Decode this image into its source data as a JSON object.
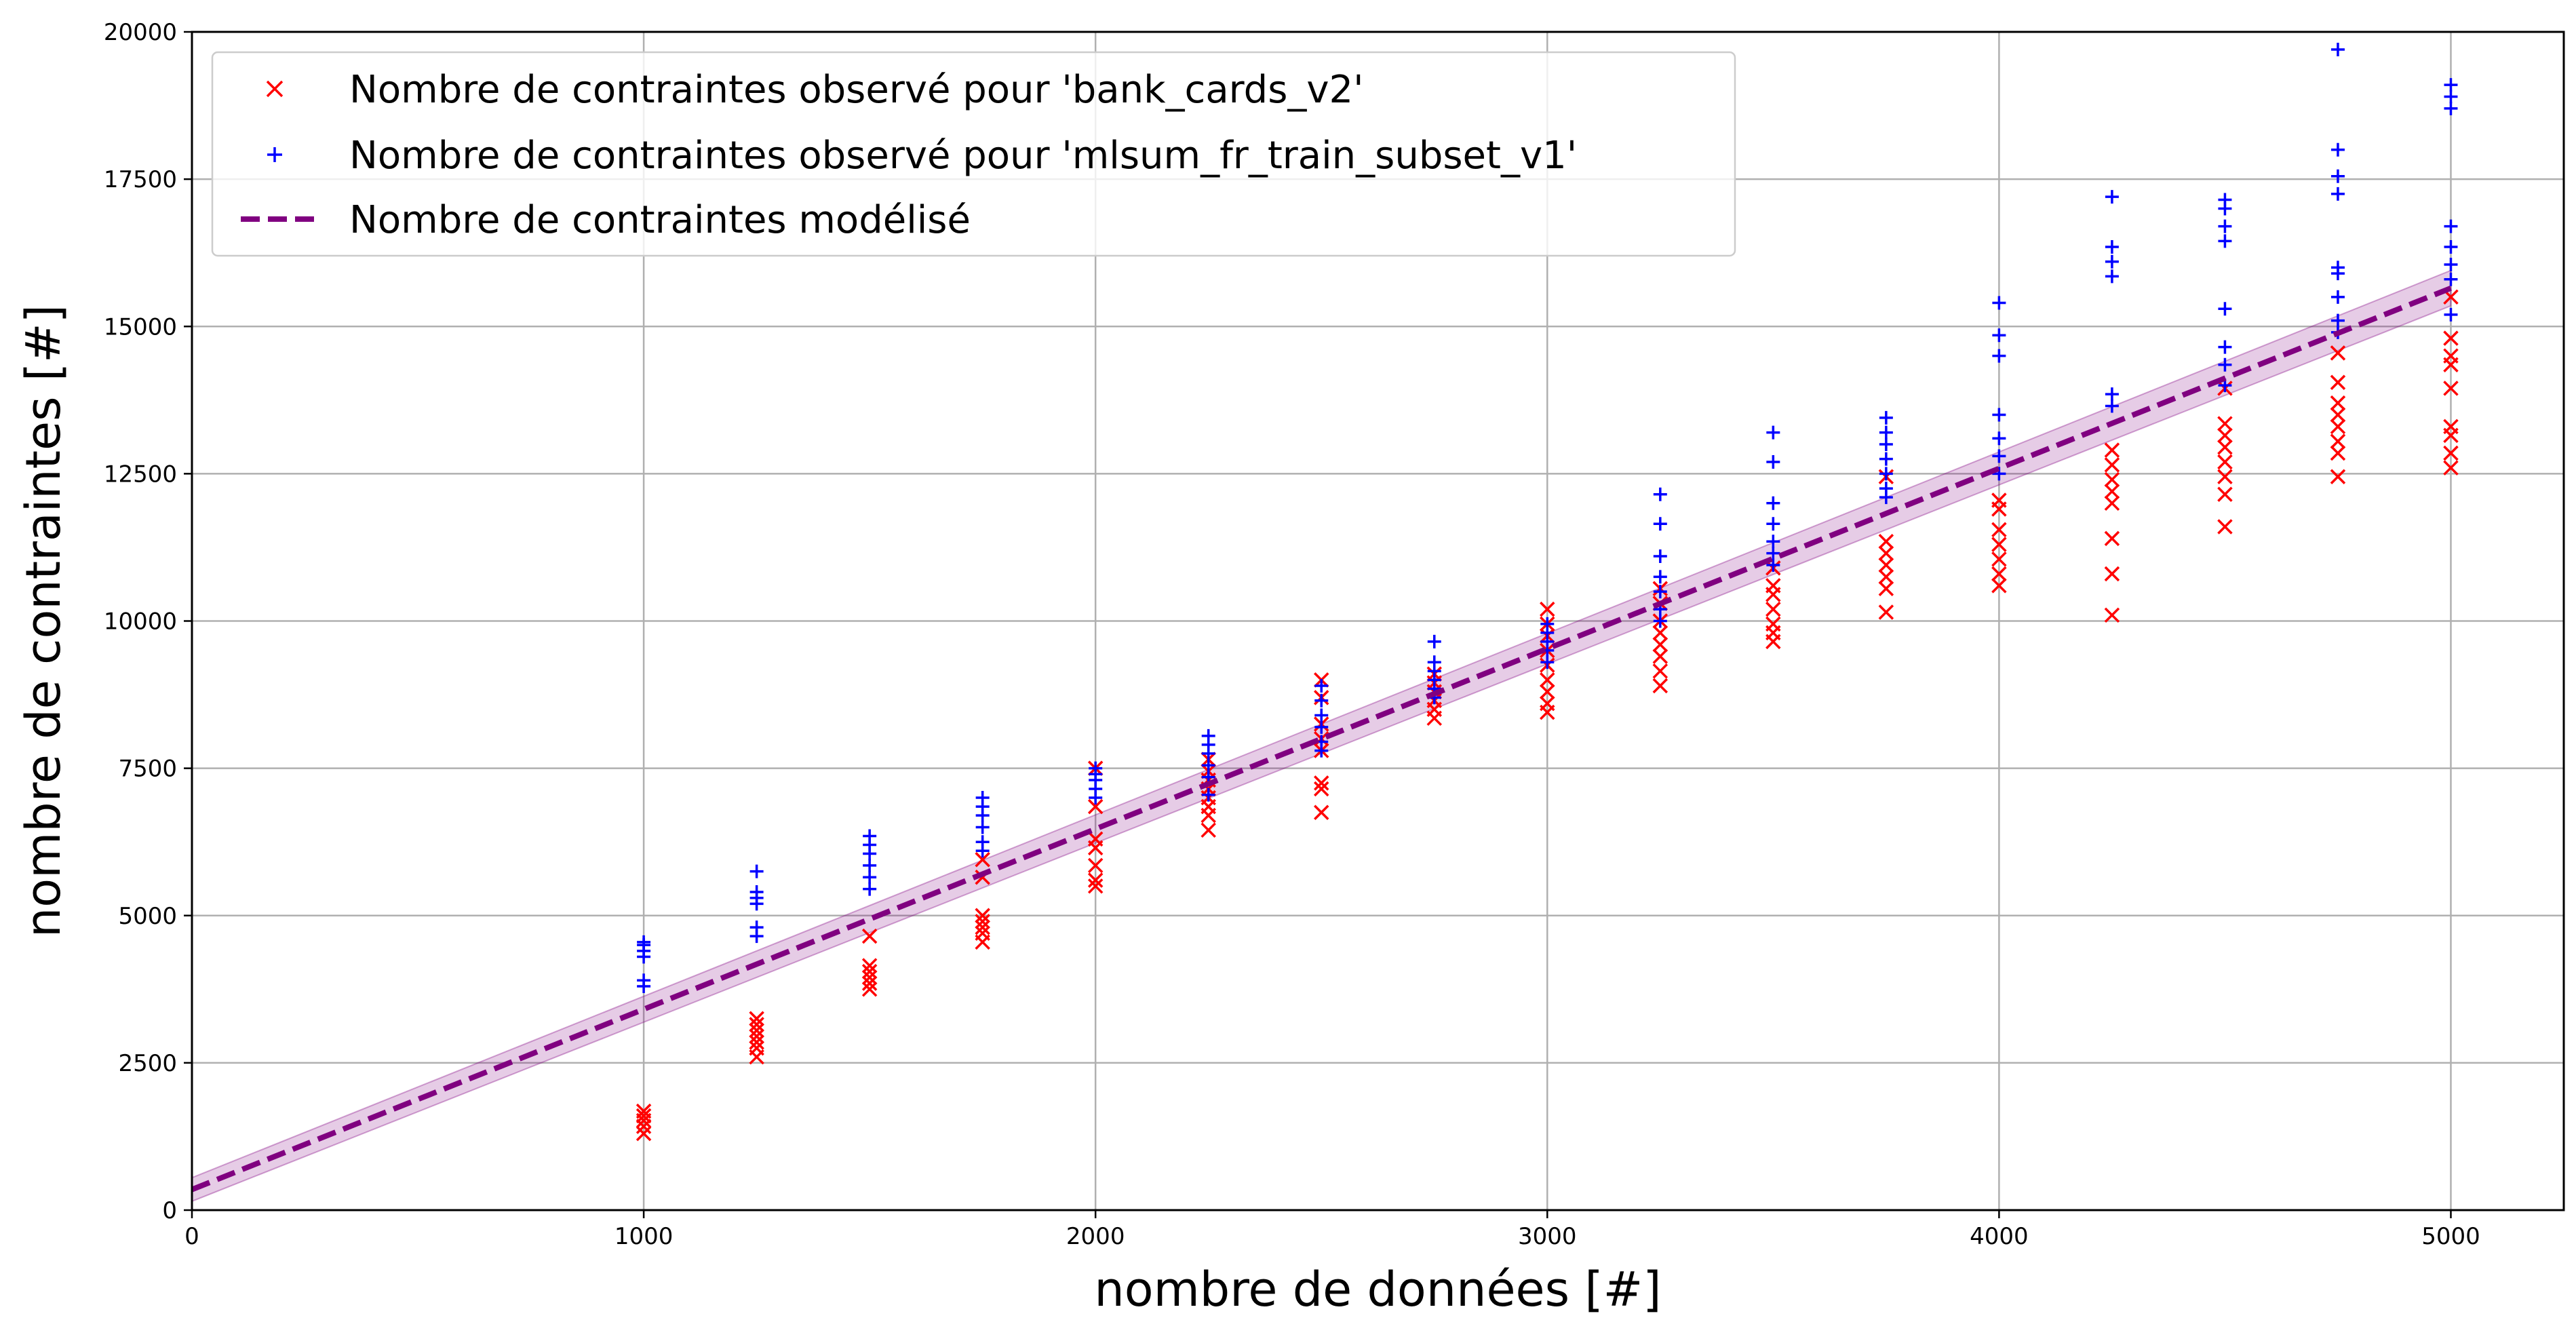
{
  "chart_data": {
    "type": "scatter",
    "title": "",
    "xlabel": "nombre de données [#]",
    "ylabel": "nombre de contraintes [#]",
    "xlim": [
      0,
      5250
    ],
    "ylim": [
      0,
      20000
    ],
    "xticks": [
      0,
      1000,
      2000,
      3000,
      4000,
      5000
    ],
    "yticks": [
      0,
      2500,
      5000,
      7500,
      10000,
      12500,
      15000,
      17500,
      20000
    ],
    "grid": true,
    "legend_position": "top-left",
    "series": [
      {
        "name": "Nombre de contraintes observé pour 'bank_cards_v2'",
        "marker": "x",
        "color": "#ff0000",
        "points": [
          [
            1000,
            1300
          ],
          [
            1000,
            1420
          ],
          [
            1000,
            1520
          ],
          [
            1000,
            1600
          ],
          [
            1000,
            1680
          ],
          [
            1250,
            2600
          ],
          [
            1250,
            2750
          ],
          [
            1250,
            2850
          ],
          [
            1250,
            2950
          ],
          [
            1250,
            3050
          ],
          [
            1250,
            3150
          ],
          [
            1250,
            3250
          ],
          [
            1500,
            3750
          ],
          [
            1500,
            3850
          ],
          [
            1500,
            3950
          ],
          [
            1500,
            4050
          ],
          [
            1500,
            4150
          ],
          [
            1500,
            4650
          ],
          [
            1750,
            4550
          ],
          [
            1750,
            4700
          ],
          [
            1750,
            4800
          ],
          [
            1750,
            4900
          ],
          [
            1750,
            5000
          ],
          [
            1750,
            5650
          ],
          [
            1750,
            5950
          ],
          [
            2000,
            5500
          ],
          [
            2000,
            5600
          ],
          [
            2000,
            5850
          ],
          [
            2000,
            6150
          ],
          [
            2000,
            6300
          ],
          [
            2000,
            6850
          ],
          [
            2000,
            7500
          ],
          [
            2250,
            6450
          ],
          [
            2250,
            6700
          ],
          [
            2250,
            6850
          ],
          [
            2250,
            7000
          ],
          [
            2250,
            7150
          ],
          [
            2250,
            7300
          ],
          [
            2250,
            7450
          ],
          [
            2250,
            7650
          ],
          [
            2500,
            6750
          ],
          [
            2500,
            7150
          ],
          [
            2500,
            7250
          ],
          [
            2500,
            7800
          ],
          [
            2500,
            8000
          ],
          [
            2500,
            8250
          ],
          [
            2500,
            8700
          ],
          [
            2500,
            9000
          ],
          [
            2750,
            8350
          ],
          [
            2750,
            8500
          ],
          [
            2750,
            8650
          ],
          [
            2750,
            8800
          ],
          [
            2750,
            8950
          ],
          [
            2750,
            9100
          ],
          [
            3000,
            8450
          ],
          [
            3000,
            8600
          ],
          [
            3000,
            8800
          ],
          [
            3000,
            9000
          ],
          [
            3000,
            9250
          ],
          [
            3000,
            9500
          ],
          [
            3000,
            9750
          ],
          [
            3000,
            9950
          ],
          [
            3000,
            10200
          ],
          [
            3250,
            8900
          ],
          [
            3250,
            9150
          ],
          [
            3250,
            9400
          ],
          [
            3250,
            9600
          ],
          [
            3250,
            9800
          ],
          [
            3250,
            10000
          ],
          [
            3250,
            10300
          ],
          [
            3250,
            10550
          ],
          [
            3500,
            9650
          ],
          [
            3500,
            9800
          ],
          [
            3500,
            9950
          ],
          [
            3500,
            10200
          ],
          [
            3500,
            10450
          ],
          [
            3500,
            10600
          ],
          [
            3500,
            10900
          ],
          [
            3750,
            10150
          ],
          [
            3750,
            10550
          ],
          [
            3750,
            10750
          ],
          [
            3750,
            10950
          ],
          [
            3750,
            11150
          ],
          [
            3750,
            11350
          ],
          [
            3750,
            12450
          ],
          [
            4000,
            10600
          ],
          [
            4000,
            10800
          ],
          [
            4000,
            11050
          ],
          [
            4000,
            11300
          ],
          [
            4000,
            11550
          ],
          [
            4000,
            11900
          ],
          [
            4000,
            12050
          ],
          [
            4250,
            10100
          ],
          [
            4250,
            10800
          ],
          [
            4250,
            11400
          ],
          [
            4250,
            12000
          ],
          [
            4250,
            12200
          ],
          [
            4250,
            12400
          ],
          [
            4250,
            12650
          ],
          [
            4250,
            12900
          ],
          [
            4500,
            11600
          ],
          [
            4500,
            12150
          ],
          [
            4500,
            12450
          ],
          [
            4500,
            12700
          ],
          [
            4500,
            12950
          ],
          [
            4500,
            13150
          ],
          [
            4500,
            13350
          ],
          [
            4500,
            13950
          ],
          [
            4750,
            12450
          ],
          [
            4750,
            12850
          ],
          [
            4750,
            13050
          ],
          [
            4750,
            13300
          ],
          [
            4750,
            13500
          ],
          [
            4750,
            13700
          ],
          [
            4750,
            14050
          ],
          [
            4750,
            14550
          ],
          [
            5000,
            12600
          ],
          [
            5000,
            12850
          ],
          [
            5000,
            13150
          ],
          [
            5000,
            13300
          ],
          [
            5000,
            13950
          ],
          [
            5000,
            14350
          ],
          [
            5000,
            14500
          ],
          [
            5000,
            14800
          ],
          [
            5000,
            15500
          ]
        ]
      },
      {
        "name": "Nombre de contraintes observé pour 'mlsum_fr_train_subset_v1'",
        "marker": "+",
        "color": "#0000ff",
        "points": [
          [
            1000,
            3800
          ],
          [
            1000,
            3900
          ],
          [
            1000,
            4300
          ],
          [
            1000,
            4400
          ],
          [
            1000,
            4500
          ],
          [
            1000,
            4550
          ],
          [
            1250,
            4650
          ],
          [
            1250,
            4800
          ],
          [
            1250,
            5200
          ],
          [
            1250,
            5300
          ],
          [
            1250,
            5400
          ],
          [
            1250,
            5750
          ],
          [
            1500,
            5450
          ],
          [
            1500,
            5650
          ],
          [
            1500,
            5850
          ],
          [
            1500,
            6050
          ],
          [
            1500,
            6200
          ],
          [
            1500,
            6350
          ],
          [
            1750,
            6100
          ],
          [
            1750,
            6250
          ],
          [
            1750,
            6500
          ],
          [
            1750,
            6700
          ],
          [
            1750,
            6850
          ],
          [
            1750,
            7000
          ],
          [
            2000,
            7000
          ],
          [
            2000,
            7150
          ],
          [
            2000,
            7300
          ],
          [
            2000,
            7400
          ],
          [
            2000,
            7500
          ],
          [
            2250,
            7050
          ],
          [
            2250,
            7350
          ],
          [
            2250,
            7550
          ],
          [
            2250,
            7750
          ],
          [
            2250,
            7900
          ],
          [
            2250,
            8050
          ],
          [
            2500,
            7800
          ],
          [
            2500,
            7950
          ],
          [
            2500,
            8200
          ],
          [
            2500,
            8400
          ],
          [
            2500,
            8650
          ],
          [
            2500,
            8900
          ],
          [
            2750,
            8700
          ],
          [
            2750,
            8850
          ],
          [
            2750,
            9000
          ],
          [
            2750,
            9150
          ],
          [
            2750,
            9300
          ],
          [
            2750,
            9650
          ],
          [
            3000,
            9300
          ],
          [
            3000,
            9500
          ],
          [
            3000,
            9650
          ],
          [
            3000,
            9800
          ],
          [
            3000,
            9950
          ],
          [
            3250,
            10000
          ],
          [
            3250,
            10200
          ],
          [
            3250,
            10500
          ],
          [
            3250,
            10750
          ],
          [
            3250,
            11100
          ],
          [
            3250,
            11650
          ],
          [
            3250,
            12150
          ],
          [
            3500,
            10950
          ],
          [
            3500,
            11150
          ],
          [
            3500,
            11350
          ],
          [
            3500,
            11650
          ],
          [
            3500,
            12000
          ],
          [
            3500,
            12700
          ],
          [
            3500,
            13200
          ],
          [
            3750,
            12100
          ],
          [
            3750,
            12250
          ],
          [
            3750,
            12500
          ],
          [
            3750,
            12750
          ],
          [
            3750,
            13000
          ],
          [
            3750,
            13200
          ],
          [
            3750,
            13450
          ],
          [
            4000,
            12500
          ],
          [
            4000,
            12800
          ],
          [
            4000,
            13100
          ],
          [
            4000,
            13500
          ],
          [
            4000,
            14500
          ],
          [
            4000,
            14850
          ],
          [
            4000,
            15400
          ],
          [
            4250,
            13650
          ],
          [
            4250,
            13850
          ],
          [
            4250,
            15850
          ],
          [
            4250,
            16100
          ],
          [
            4250,
            16350
          ],
          [
            4250,
            17200
          ],
          [
            4500,
            14000
          ],
          [
            4500,
            14350
          ],
          [
            4500,
            14650
          ],
          [
            4500,
            15300
          ],
          [
            4500,
            16450
          ],
          [
            4500,
            16700
          ],
          [
            4500,
            17000
          ],
          [
            4500,
            17150
          ],
          [
            4750,
            14900
          ],
          [
            4750,
            15100
          ],
          [
            4750,
            15500
          ],
          [
            4750,
            15900
          ],
          [
            4750,
            16000
          ],
          [
            4750,
            17250
          ],
          [
            4750,
            17550
          ],
          [
            4750,
            18000
          ],
          [
            4750,
            19700
          ],
          [
            5000,
            15200
          ],
          [
            5000,
            15800
          ],
          [
            5000,
            16050
          ],
          [
            5000,
            16350
          ],
          [
            5000,
            16700
          ],
          [
            5000,
            18700
          ],
          [
            5000,
            18900
          ],
          [
            5000,
            19100
          ]
        ]
      },
      {
        "name": "Nombre de contraintes modélisé",
        "type": "line",
        "style": "dashed",
        "color": "#800080",
        "band_color": "#800080",
        "x": [
          0,
          5000
        ],
        "y": [
          350,
          15650
        ],
        "band_lower": [
          150,
          15350
        ],
        "band_upper": [
          550,
          15950
        ]
      }
    ]
  }
}
